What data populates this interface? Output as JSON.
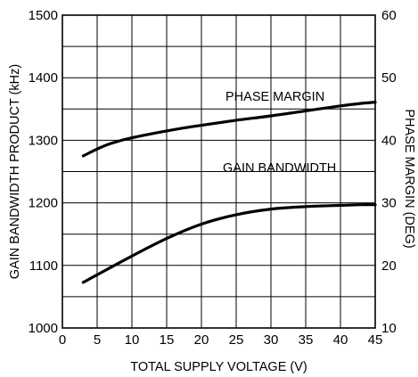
{
  "chart_data": {
    "type": "line",
    "title": "",
    "xlabel": "TOTAL SUPPLY VOLTAGE (V)",
    "ylabel": "GAIN BANDWIDTH PRODUCT (kHz)",
    "y2label": "PHASE MARGIN (DEG)",
    "xlim": [
      0,
      45
    ],
    "ylim": [
      1000,
      1500
    ],
    "y2lim": [
      10,
      60
    ],
    "xticks": [
      0,
      5,
      10,
      15,
      20,
      25,
      30,
      35,
      40,
      45
    ],
    "yticks": [
      1000,
      1100,
      1200,
      1300,
      1400,
      1500
    ],
    "y2ticks": [
      10,
      20,
      30,
      40,
      50,
      60
    ],
    "grid": true,
    "series": [
      {
        "name": "PHASE MARGIN",
        "axis": "right",
        "x": [
          3,
          5,
          7,
          10,
          15,
          20,
          25,
          30,
          35,
          40,
          43,
          45
        ],
        "y": [
          37.5,
          38.6,
          39.5,
          40.4,
          41.5,
          42.4,
          43.2,
          43.9,
          44.7,
          45.5,
          45.9,
          46.1
        ]
      },
      {
        "name": "GAIN BANDWIDTH",
        "axis": "left",
        "x": [
          3,
          5,
          10,
          15,
          20,
          25,
          30,
          35,
          40,
          43,
          45
        ],
        "y": [
          1073,
          1085,
          1115,
          1143,
          1166,
          1181,
          1190,
          1194,
          1196,
          1197,
          1197
        ]
      }
    ],
    "annotations": [
      {
        "text": "PHASE MARGIN",
        "series": "PHASE MARGIN"
      },
      {
        "text": "GAIN BANDWIDTH",
        "series": "GAIN BANDWIDTH"
      }
    ]
  }
}
